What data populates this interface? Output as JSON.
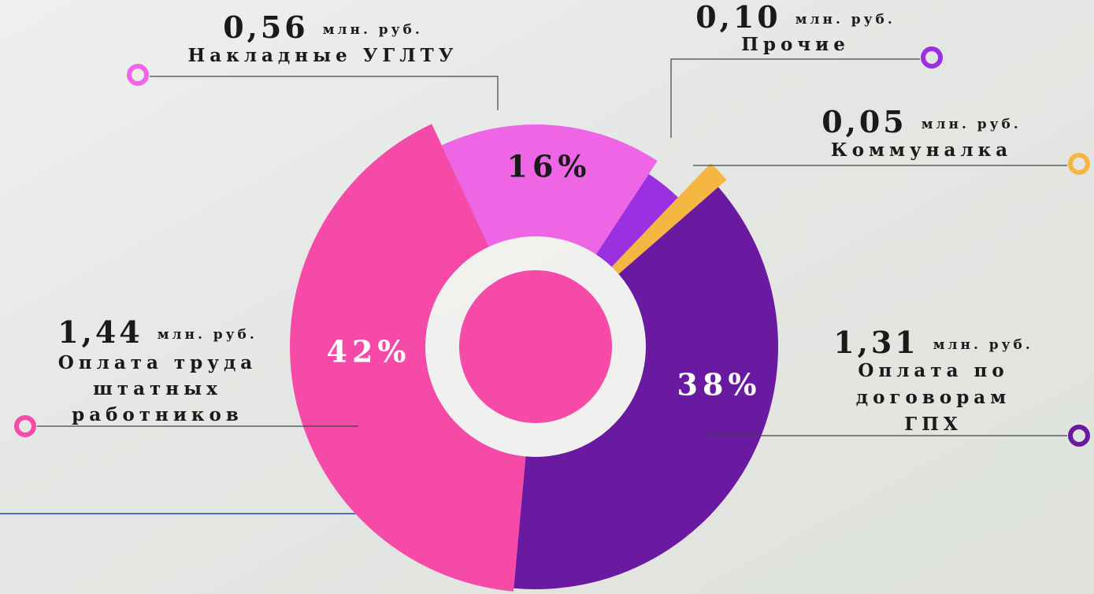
{
  "chart_data": {
    "type": "pie",
    "categories": [
      [
        "Накладные УГЛТУ"
      ],
      [
        "Прочие"
      ],
      [
        "Коммуналка"
      ],
      [
        "Оплата по",
        "договорам",
        "ГПХ"
      ],
      [
        "Оплата труда",
        "штатных",
        "работников"
      ]
    ],
    "values": [
      0.56,
      0.1,
      0.05,
      1.31,
      1.44
    ],
    "value_labels": [
      "0,56",
      "0,10",
      "0,05",
      "1,31",
      "1,44"
    ],
    "unit": "млн. руб.",
    "share_labels": [
      "16%",
      null,
      null,
      "38%",
      "42%"
    ],
    "colors": [
      "#ee66e6",
      "#9b30e0",
      "#f5b642",
      "#6a1aa0",
      "#f54aa8"
    ]
  }
}
